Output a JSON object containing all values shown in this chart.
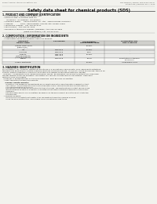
{
  "bg_color": "#f2f2ed",
  "header_left": "Product Name: Lithium Ion Battery Cell",
  "header_right_line1": "SDS Number / Version: SRS-0018-0001-E",
  "header_right_line2": "Established / Revision: Dec.7, 2016",
  "title": "Safety data sheet for chemical products (SDS)",
  "section1_header": "1. PRODUCT AND COMPANY IDENTIFICATION",
  "section1_lines": [
    "  • Product name: Lithium Ion Battery Cell",
    "  • Product code: Cylindrical-type cell",
    "       G4-8650U,  G4-18650U,  G4-18650A",
    "  • Company name:     Sanyo Electric, Co., Ltd.,  Mobile Energy Company",
    "  • Address:            2001,  Kamishinden, Sumoto-City, Hyogo, Japan",
    "  • Telephone number:  +81-799-26-4111",
    "  • Fax number:  +81-799-26-4125",
    "  • Emergency telephone number: (Weekday) +81-799-26-3562",
    "                                    (Night and holiday) +81-799-26-4101"
  ],
  "section2_header": "2. COMPOSITION / INFORMATION ON INGREDIENTS",
  "section2_sub": "  • Substance or preparation: Preparation",
  "section2_sub2": "  • Information about the chemical nature of product:",
  "table_col_headers": [
    "Component\nGeneral name",
    "CAS number",
    "Concentration /\nConcentration range",
    "Classification and\nhazard labeling"
  ],
  "table_rows": [
    [
      "Lithium cobalt oxide\n(LiMnCo)(O2)",
      "-",
      "30-60%",
      "-"
    ],
    [
      "Iron",
      "7439-89-6",
      "10-20%",
      "-"
    ],
    [
      "Aluminum",
      "7429-90-5",
      "2-5%",
      "-"
    ],
    [
      "Graphite\n(Natural graphite)\n(Artificial graphite)",
      "7782-42-5\n7782-44-2",
      "10-20%",
      "-"
    ],
    [
      "Copper",
      "7440-50-8",
      "5-15%",
      "Sensitization of the skin\ngroup No.2"
    ],
    [
      "Organic electrolyte",
      "-",
      "10-20%",
      "Inflammable liquid"
    ]
  ],
  "section3_header": "3. HAZARDS IDENTIFICATION",
  "section3_para1": "For the battery cell, chemical substances are stored in a hermetically sealed metal case, designed to withstand",
  "section3_para2": "temperatures generated by electro-chemical reactions during normal use. As a result, during normal use, there is no",
  "section3_para3": "physical danger of ignition or explosion and there is no danger of hazardous materials leakage.",
  "section3_para4": "  However, if exposed to a fire, added mechanical shocks, decomposed, arisen electro without any measures,",
  "section3_para5": "the gas release cannot be operated. The battery cell case will be breached or fire-patterns. Hazardous",
  "section3_para6": "materials may be released.",
  "section3_para7": "  Moreover, if heated strongly by the surrounding fire, emit gas may be emitted.",
  "bullet1": "  • Most important hazard and effects:",
  "human_health": "    Human health effects:",
  "inhalation": "       Inhalation: The release of the electrolyte has an anesthesia action and stimulates a respiratory tract.",
  "skin1": "       Skin contact: The release of the electrolyte stimulates a skin. The electrolyte skin contact causes a",
  "skin2": "       sore and stimulation on the skin.",
  "eye1": "       Eye contact: The release of the electrolyte stimulates eyes. The electrolyte eye contact causes a sore",
  "eye2": "       and stimulation on the eye. Especially, a substance that causes a strong inflammation of the eye is",
  "eye3": "       contained.",
  "env1": "       Environmental effects: Since a battery cell remains in the environment, do not throw out it into the",
  "env2": "       environment.",
  "bullet2": "  • Specific hazards:",
  "spec1": "       If the electrolyte contacts with water, it will generate detrimental hydrogen fluoride.",
  "spec2": "       Since the used electrolyte is inflammable liquid, do not bring close to fire."
}
